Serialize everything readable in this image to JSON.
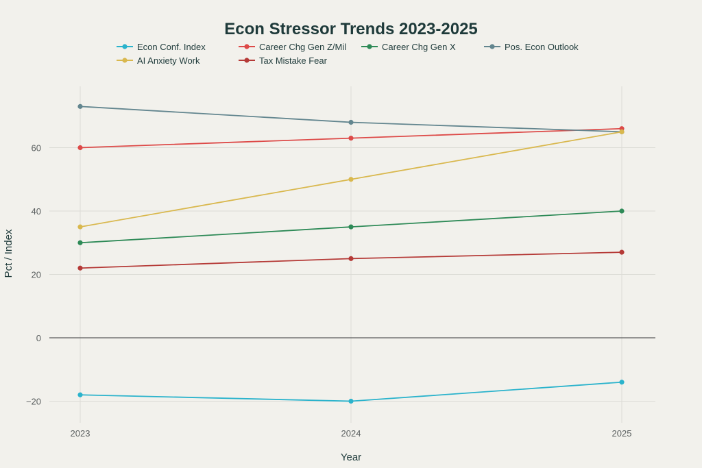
{
  "chart_data": {
    "type": "line",
    "title": "Econ Stressor Trends 2023-2025",
    "xlabel": "Year",
    "ylabel": "Pct / Index",
    "x": [
      "2023",
      "2024",
      "2025"
    ],
    "ylim": [
      -27,
      80
    ],
    "yticks": [
      -20,
      0,
      20,
      40,
      60
    ],
    "ytick_labels": [
      "−20",
      "0",
      "20",
      "40",
      "60"
    ],
    "grid": true,
    "legend_position": "top",
    "series": [
      {
        "name": "Econ Conf. Index",
        "color": "#2bb3cc",
        "values": [
          -18,
          -20,
          -14
        ]
      },
      {
        "name": "Career Chg Gen Z/Mil",
        "color": "#dd4a48",
        "values": [
          60,
          63,
          66
        ]
      },
      {
        "name": "Career Chg Gen X",
        "color": "#2e8a57",
        "values": [
          30,
          35,
          40
        ]
      },
      {
        "name": "Pos. Econ Outlook",
        "color": "#63868f",
        "values": [
          73,
          68,
          65
        ]
      },
      {
        "name": "AI Anxiety Work",
        "color": "#d9b84e",
        "values": [
          35,
          50,
          65
        ]
      },
      {
        "name": "Tax Mistake Fear",
        "color": "#b53a37",
        "values": [
          22,
          25,
          27
        ]
      }
    ]
  }
}
